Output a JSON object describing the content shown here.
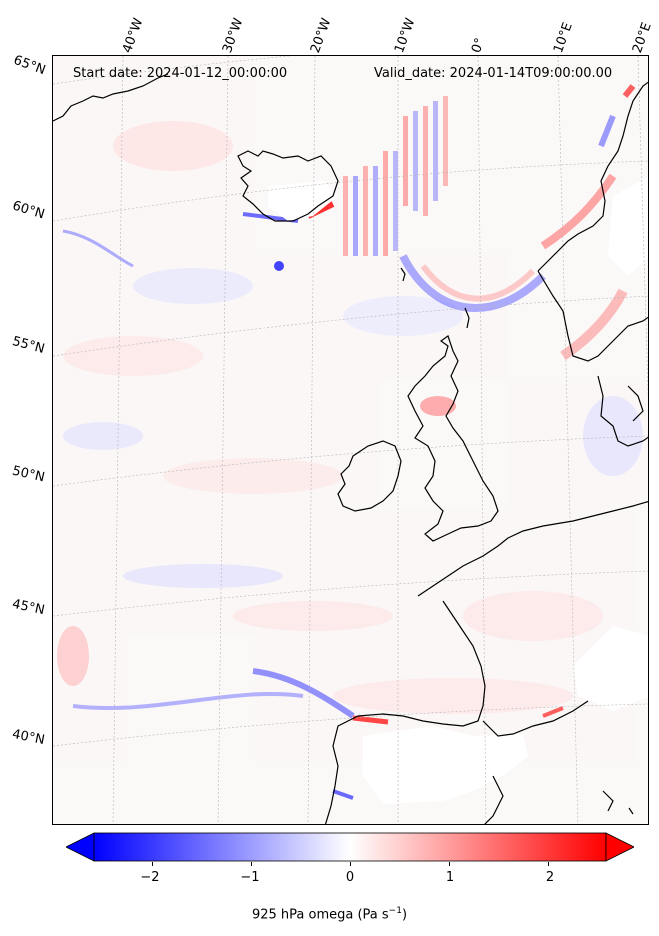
{
  "header": {
    "start_date": "Start date: 2024-01-12_00:00:00",
    "valid_date": "Valid_date: 2024-01-14T09:00:00.00"
  },
  "longitude_labels": [
    "40°W",
    "30°W",
    "20°W",
    "10°W",
    "0°",
    "10°E",
    "20°E"
  ],
  "latitude_labels": [
    "65°N",
    "60°N",
    "55°N",
    "50°N",
    "45°N",
    "40°N"
  ],
  "colorbar": {
    "ticks": [
      "−2",
      "−1",
      "0",
      "1",
      "2"
    ],
    "label": "925 hPa omega (Pa s",
    "label_sup": "−1",
    "label_end": ")",
    "range": [
      -2.6,
      2.6
    ],
    "colormap": "bwr",
    "extend": "both"
  },
  "colors": {
    "negative": "#0000ff",
    "zero": "#ffffff",
    "positive": "#ff0000",
    "coastline": "#000000",
    "gridline": "#b0b0b0"
  }
}
